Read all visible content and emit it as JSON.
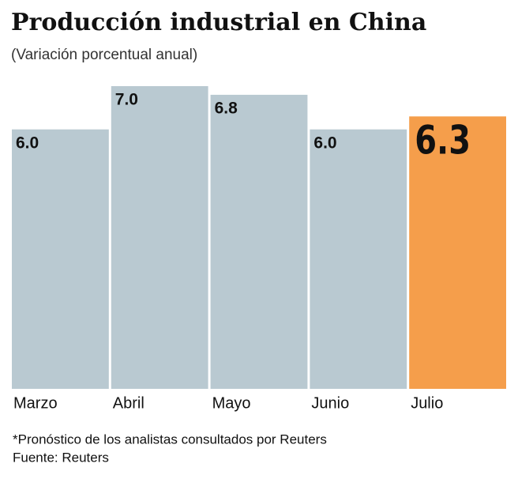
{
  "chart_data": {
    "type": "bar",
    "title": "Producción industrial en China",
    "subtitle": "(Variación porcentual anual)",
    "categories": [
      "Marzo",
      "Abril",
      "Mayo",
      "Junio",
      "Julio"
    ],
    "values": [
      6.0,
      7.0,
      6.8,
      6.0,
      6.3
    ],
    "value_labels": [
      "6.0",
      "7.0",
      "6.8",
      "6.0",
      "6.3"
    ],
    "colors": [
      "#b9c9d1",
      "#b9c9d1",
      "#b9c9d1",
      "#b9c9d1",
      "#f59e4b"
    ],
    "notes": [
      "*Pronóstico de los analistas consultados por Reuters",
      "Fuente: Reuters"
    ]
  }
}
